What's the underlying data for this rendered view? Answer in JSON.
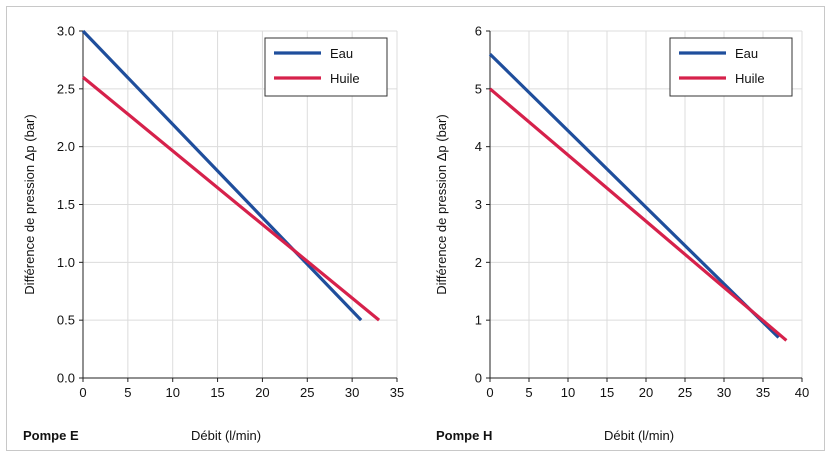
{
  "colors": {
    "eau": "#1f4e9c",
    "huile": "#d6214b",
    "grid": "#dcdcdc",
    "axis": "#222222"
  },
  "chart_data": [
    {
      "type": "line",
      "pump_label": "Pompe E",
      "xlabel": "Débit (l/min)",
      "ylabel": "Différence de pression Δp (bar)",
      "xlim": [
        0,
        35
      ],
      "ylim": [
        0,
        3.0
      ],
      "xticks": [
        "0",
        "5",
        "10",
        "15",
        "20",
        "25",
        "30",
        "35"
      ],
      "yticks": [
        "0.0",
        "0.5",
        "1.0",
        "1.5",
        "2.0",
        "2.5",
        "3.0"
      ],
      "grid": true,
      "legend_position": "top-right",
      "series": [
        {
          "name": "Eau",
          "color": "#1f4e9c",
          "x": [
            0,
            31
          ],
          "y": [
            3.0,
            0.5
          ]
        },
        {
          "name": "Huile",
          "color": "#d6214b",
          "x": [
            0,
            33
          ],
          "y": [
            2.6,
            0.5
          ]
        }
      ]
    },
    {
      "type": "line",
      "pump_label": "Pompe H",
      "xlabel": "Débit (l/min)",
      "ylabel": "Différence de pression Δp (bar)",
      "xlim": [
        0,
        40
      ],
      "ylim": [
        0,
        6
      ],
      "xticks": [
        "0",
        "5",
        "10",
        "15",
        "20",
        "25",
        "30",
        "35",
        "40"
      ],
      "yticks": [
        "0",
        "1",
        "2",
        "3",
        "4",
        "5",
        "6"
      ],
      "grid": true,
      "legend_position": "top-right",
      "series": [
        {
          "name": "Eau",
          "color": "#1f4e9c",
          "x": [
            0,
            37
          ],
          "y": [
            5.6,
            0.7
          ]
        },
        {
          "name": "Huile",
          "color": "#d6214b",
          "x": [
            0,
            38
          ],
          "y": [
            5.0,
            0.65
          ]
        }
      ]
    }
  ]
}
